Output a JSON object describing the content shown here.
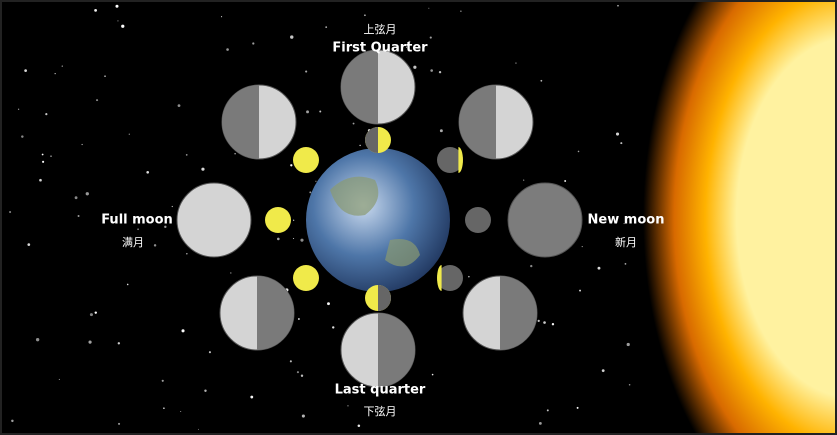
{
  "labels": {
    "first_quarter_cn": "上弦月",
    "first_quarter": "First Quarter",
    "full_moon": "Full moon",
    "full_moon_cn": "满月",
    "new_moon": "New moon",
    "new_moon_cn": "新月",
    "last_quarter": "Last quarter",
    "last_quarter_cn": "下弦月"
  }
}
